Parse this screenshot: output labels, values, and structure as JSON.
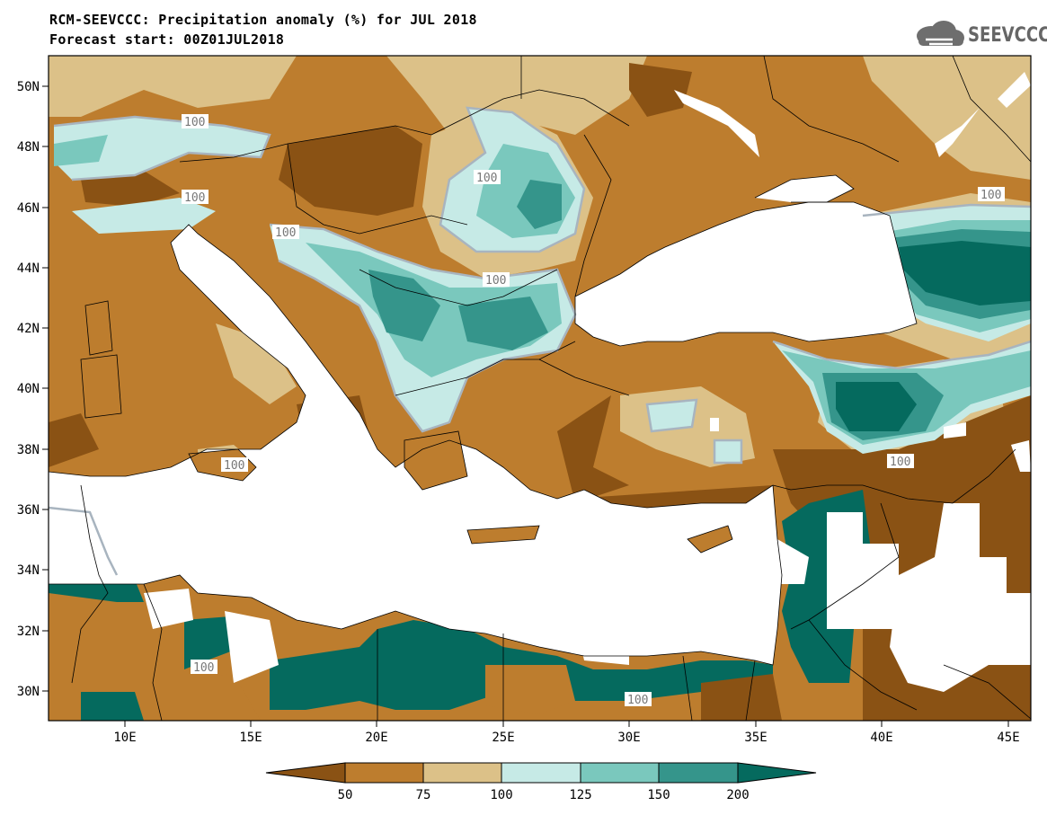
{
  "header": {
    "title": "RCM-SEEVCCC: Precipitation anomaly (%) for JUL 2018",
    "subtitle": "Forecast start: 00Z01JUL2018"
  },
  "logo": {
    "text": "SEEVCCC",
    "icon": "cloud-icon"
  },
  "map": {
    "variable": "Precipitation anomaly (%)",
    "lon_range": [
      7,
      46
    ],
    "lat_range": [
      29,
      51
    ],
    "lon_ticks": [
      "10E",
      "15E",
      "20E",
      "25E",
      "30E",
      "35E",
      "40E",
      "45E"
    ],
    "lat_ticks": [
      "50N",
      "48N",
      "46N",
      "44N",
      "42N",
      "40N",
      "38N",
      "36N",
      "34N",
      "32N",
      "30N"
    ],
    "contour_labels": [
      "100",
      "100",
      "100",
      "100",
      "100",
      "100",
      "100",
      "100",
      "100",
      "100"
    ]
  },
  "legend": {
    "levels": [
      "50",
      "75",
      "100",
      "125",
      "150",
      "200"
    ],
    "colors": [
      "#8a5214",
      "#bd7d2e",
      "#dcc188",
      "#c6eae6",
      "#7ac8bd",
      "#35958b",
      "#056a5e"
    ]
  }
}
